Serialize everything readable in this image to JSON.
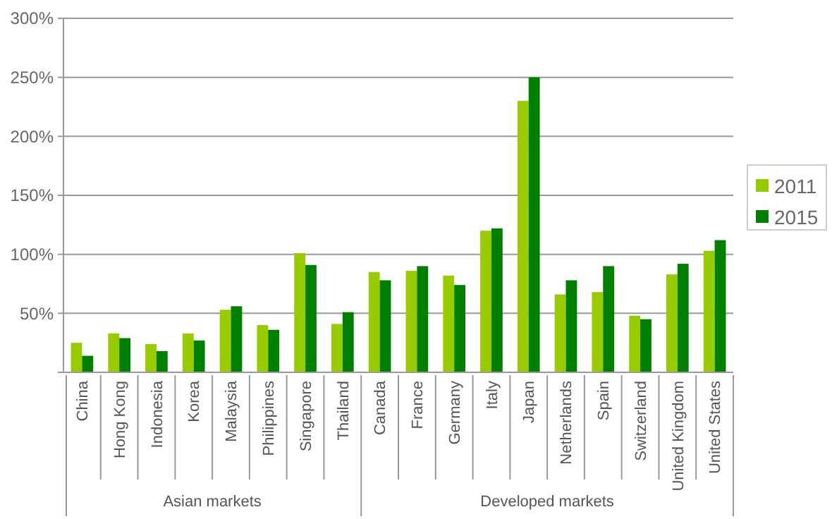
{
  "chart_data": {
    "type": "bar",
    "categories": [
      "China",
      "Hong Kong",
      "Indonesia",
      "Korea",
      "Malaysia",
      "Philippines",
      "Singapore",
      "Thailand",
      "Canada",
      "France",
      "Germany",
      "Italy",
      "Japan",
      "Netherlands",
      "Spain",
      "Switzerland",
      "United Kingdom",
      "United States"
    ],
    "series": [
      {
        "name": "2011",
        "color": "#99cc00",
        "values": [
          25,
          33,
          24,
          33,
          53,
          40,
          101,
          41,
          85,
          86,
          82,
          120,
          230,
          66,
          68,
          48,
          83,
          103
        ]
      },
      {
        "name": "2015",
        "color": "#008000",
        "values": [
          14,
          29,
          18,
          27,
          56,
          36,
          91,
          51,
          78,
          90,
          74,
          122,
          250,
          78,
          90,
          45,
          92,
          112
        ]
      }
    ],
    "ylim": [
      0,
      300
    ],
    "yticks": [
      {
        "value": 0,
        "label": null
      },
      {
        "value": 50,
        "label": "50%"
      },
      {
        "value": 100,
        "label": "100%"
      },
      {
        "value": 150,
        "label": "150%"
      },
      {
        "value": 200,
        "label": "200%"
      },
      {
        "value": 250,
        "label": "250%"
      },
      {
        "value": 300,
        "label": "300%"
      }
    ],
    "grid": "y",
    "legend": "right",
    "annotations": [
      "Asian markets",
      "Developed markets"
    ]
  }
}
